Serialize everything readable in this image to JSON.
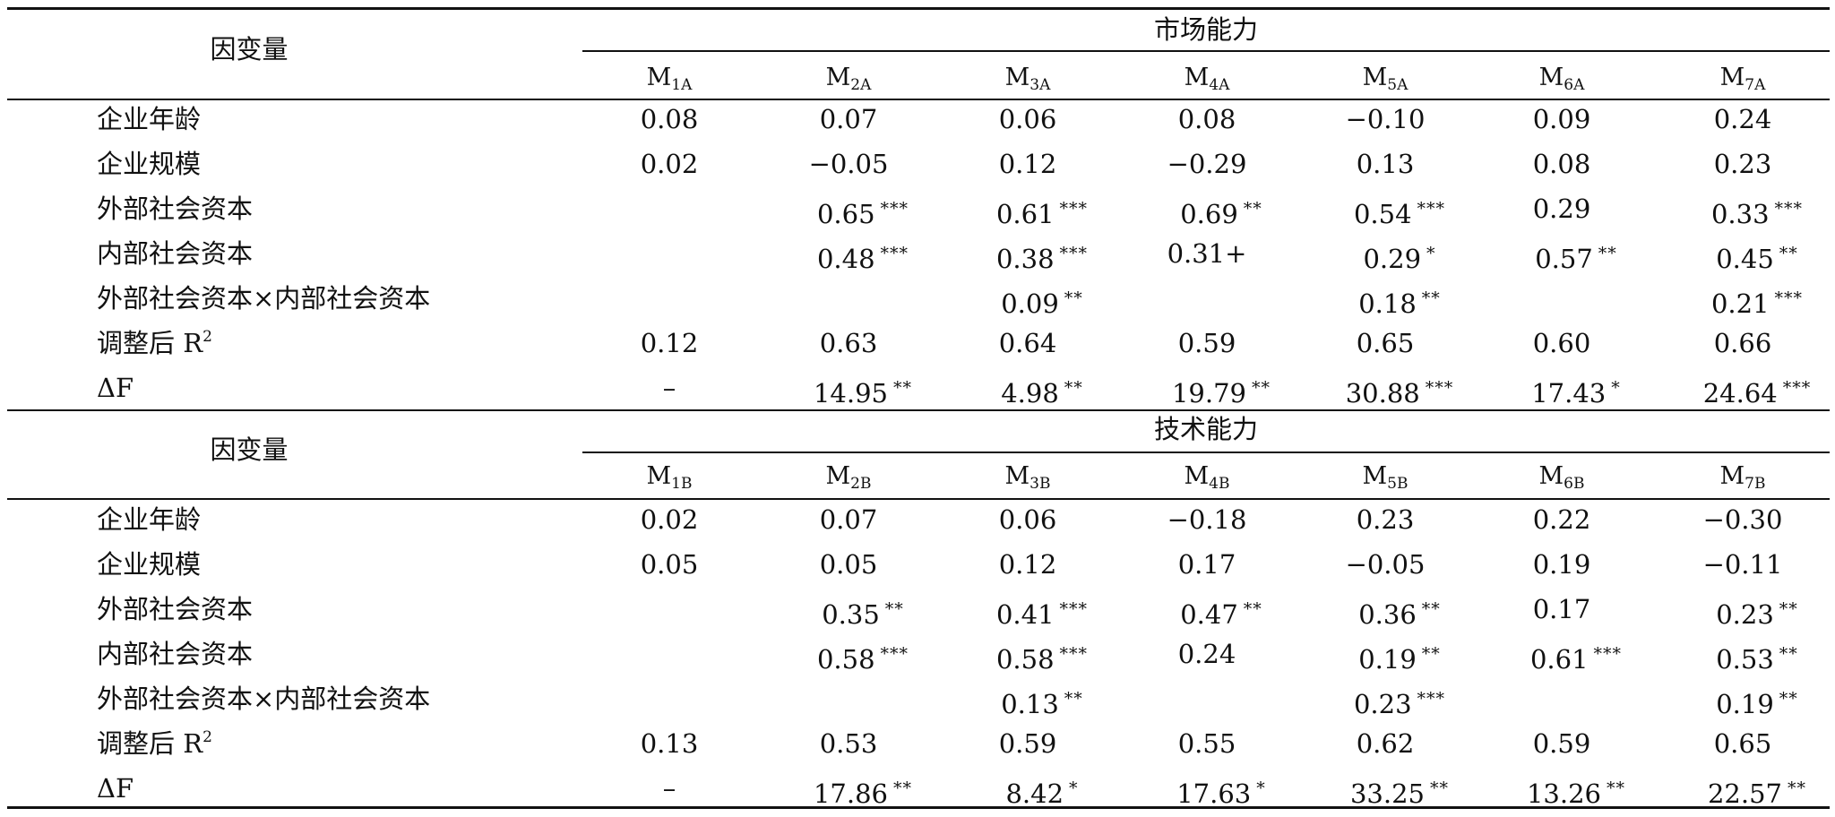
{
  "dependent_label": "因变量",
  "panels": [
    {
      "group_title": "市场能力",
      "models": [
        {
          "base": "M",
          "sub": "1A"
        },
        {
          "base": "M",
          "sub": "2A"
        },
        {
          "base": "M",
          "sub": "3A"
        },
        {
          "base": "M",
          "sub": "4A"
        },
        {
          "base": "M",
          "sub": "5A"
        },
        {
          "base": "M",
          "sub": "6A"
        },
        {
          "base": "M",
          "sub": "7A"
        }
      ],
      "rows": [
        {
          "label": "企业年龄",
          "cells": [
            {
              "v": "0.08"
            },
            {
              "v": "0.07"
            },
            {
              "v": "0.06"
            },
            {
              "v": "0.08"
            },
            {
              "v": "−0.10"
            },
            {
              "v": "0.09"
            },
            {
              "v": "0.24"
            }
          ]
        },
        {
          "label": "企业规模",
          "cells": [
            {
              "v": "0.02"
            },
            {
              "v": "−0.05"
            },
            {
              "v": "0.12"
            },
            {
              "v": "−0.29"
            },
            {
              "v": "0.13"
            },
            {
              "v": "0.08"
            },
            {
              "v": "0.23"
            }
          ]
        },
        {
          "label": "外部社会资本",
          "cells": [
            {
              "v": ""
            },
            {
              "v": "0.65",
              "s": "***"
            },
            {
              "v": "0.61",
              "s": "***"
            },
            {
              "v": "0.69",
              "s": "**"
            },
            {
              "v": "0.54",
              "s": "***"
            },
            {
              "v": "0.29"
            },
            {
              "v": "0.33",
              "s": "***"
            }
          ]
        },
        {
          "label": "内部社会资本",
          "cells": [
            {
              "v": ""
            },
            {
              "v": "0.48",
              "s": "***"
            },
            {
              "v": "0.38",
              "s": "***"
            },
            {
              "v": "0.31+"
            },
            {
              "v": "0.29",
              "s": "*"
            },
            {
              "v": "0.57",
              "s": "**"
            },
            {
              "v": "0.45",
              "s": "**"
            }
          ]
        },
        {
          "label": "外部社会资本×内部社会资本",
          "cells": [
            {
              "v": ""
            },
            {
              "v": ""
            },
            {
              "v": "0.09",
              "s": "**"
            },
            {
              "v": ""
            },
            {
              "v": "0.18",
              "s": "**"
            },
            {
              "v": ""
            },
            {
              "v": "0.21",
              "s": "***"
            }
          ]
        },
        {
          "label": "调整后 R",
          "label_sup": "2",
          "cells": [
            {
              "v": "0.12"
            },
            {
              "v": "0.63"
            },
            {
              "v": "0.64"
            },
            {
              "v": "0.59"
            },
            {
              "v": "0.65"
            },
            {
              "v": "0.60"
            },
            {
              "v": "0.66"
            }
          ]
        },
        {
          "label": "ΔF",
          "cells": [
            {
              "v": "–"
            },
            {
              "v": "14.95",
              "s": "**"
            },
            {
              "v": "4.98",
              "s": "**"
            },
            {
              "v": "19.79",
              "s": "**"
            },
            {
              "v": "30.88",
              "s": "***"
            },
            {
              "v": "17.43",
              "s": "*"
            },
            {
              "v": "24.64",
              "s": "***"
            }
          ]
        }
      ]
    },
    {
      "group_title": "技术能力",
      "models": [
        {
          "base": "M",
          "sub": "1B"
        },
        {
          "base": "M",
          "sub": "2B"
        },
        {
          "base": "M",
          "sub": "3B"
        },
        {
          "base": "M",
          "sub": "4B"
        },
        {
          "base": "M",
          "sub": "5B"
        },
        {
          "base": "M",
          "sub": "6B"
        },
        {
          "base": "M",
          "sub": "7B"
        }
      ],
      "rows": [
        {
          "label": "企业年龄",
          "cells": [
            {
              "v": "0.02"
            },
            {
              "v": "0.07"
            },
            {
              "v": "0.06"
            },
            {
              "v": "−0.18"
            },
            {
              "v": "0.23"
            },
            {
              "v": "0.22"
            },
            {
              "v": "−0.30"
            }
          ]
        },
        {
          "label": "企业规模",
          "cells": [
            {
              "v": "0.05"
            },
            {
              "v": "0.05"
            },
            {
              "v": "0.12"
            },
            {
              "v": "0.17"
            },
            {
              "v": "−0.05"
            },
            {
              "v": "0.19"
            },
            {
              "v": "−0.11"
            }
          ]
        },
        {
          "label": "外部社会资本",
          "cells": [
            {
              "v": ""
            },
            {
              "v": "0.35",
              "s": "**"
            },
            {
              "v": "0.41",
              "s": "***"
            },
            {
              "v": "0.47",
              "s": "**"
            },
            {
              "v": "0.36",
              "s": "**"
            },
            {
              "v": "0.17"
            },
            {
              "v": "0.23",
              "s": "**"
            }
          ]
        },
        {
          "label": "内部社会资本",
          "cells": [
            {
              "v": ""
            },
            {
              "v": "0.58",
              "s": "***"
            },
            {
              "v": "0.58",
              "s": "***"
            },
            {
              "v": "0.24"
            },
            {
              "v": "0.19",
              "s": "**"
            },
            {
              "v": "0.61",
              "s": "***"
            },
            {
              "v": "0.53",
              "s": "**"
            }
          ]
        },
        {
          "label": "外部社会资本×内部社会资本",
          "cells": [
            {
              "v": ""
            },
            {
              "v": ""
            },
            {
              "v": "0.13",
              "s": "**"
            },
            {
              "v": ""
            },
            {
              "v": "0.23",
              "s": "***"
            },
            {
              "v": ""
            },
            {
              "v": "0.19",
              "s": "**"
            }
          ]
        },
        {
          "label": "调整后 R",
          "label_sup": "2",
          "cells": [
            {
              "v": "0.13"
            },
            {
              "v": "0.53"
            },
            {
              "v": "0.59"
            },
            {
              "v": "0.55"
            },
            {
              "v": "0.62"
            },
            {
              "v": "0.59"
            },
            {
              "v": "0.65"
            }
          ]
        },
        {
          "label": "ΔF",
          "cells": [
            {
              "v": "–"
            },
            {
              "v": "17.86",
              "s": "**"
            },
            {
              "v": "8.42",
              "s": "*"
            },
            {
              "v": "17.63",
              "s": "*"
            },
            {
              "v": "33.25",
              "s": "**"
            },
            {
              "v": "13.26",
              "s": "**"
            },
            {
              "v": "22.57",
              "s": "**"
            }
          ]
        }
      ]
    }
  ]
}
